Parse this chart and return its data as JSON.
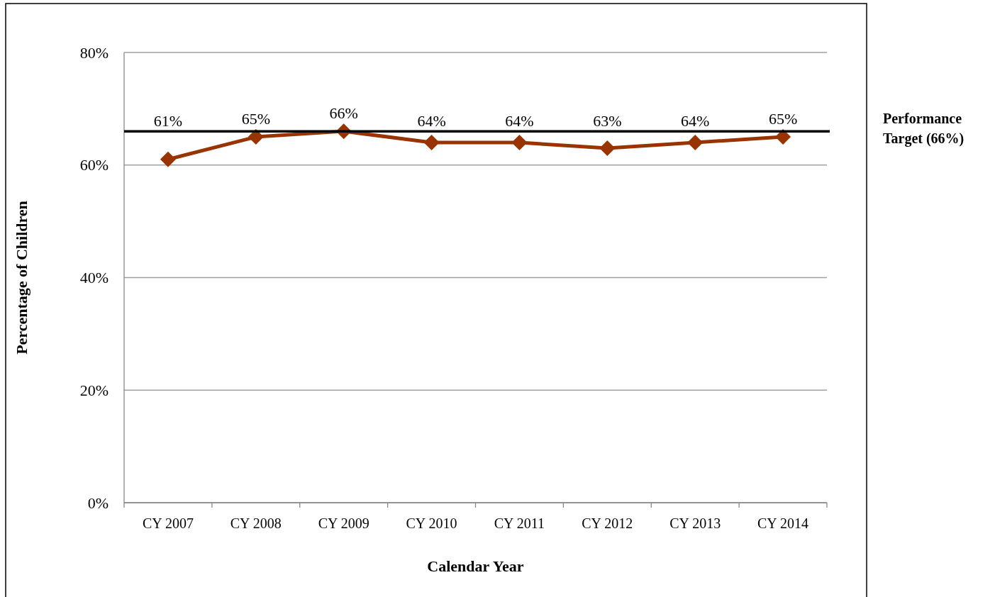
{
  "chart_data": {
    "type": "line",
    "xlabel": "Calendar Year",
    "ylabel": "Percentage of Children",
    "categories": [
      "CY 2007",
      "CY 2008",
      "CY 2009",
      "CY 2010",
      "CY 2011",
      "CY 2012",
      "CY 2013",
      "CY 2014"
    ],
    "series": [
      {
        "color": "#993300",
        "values": [
          61,
          65,
          66,
          64,
          64,
          63,
          64,
          65
        ],
        "value_labels": [
          "61%",
          "65%",
          "66%",
          "64%",
          "64%",
          "63%",
          "64%",
          "65%"
        ]
      }
    ],
    "ylim": [
      0,
      80
    ],
    "yticks": [
      {
        "value": 0,
        "label": "0%"
      },
      {
        "value": 20,
        "label": "20%"
      },
      {
        "value": 40,
        "label": "40%"
      },
      {
        "value": 60,
        "label": "60%"
      },
      {
        "value": 80,
        "label": "80%"
      }
    ],
    "grid": "y",
    "marker": "diamond",
    "line_style": "solid",
    "ref_lines": [
      {
        "axis": "y",
        "value": 66,
        "label": "Performance Target (66%)",
        "color": "#000000"
      }
    ]
  }
}
